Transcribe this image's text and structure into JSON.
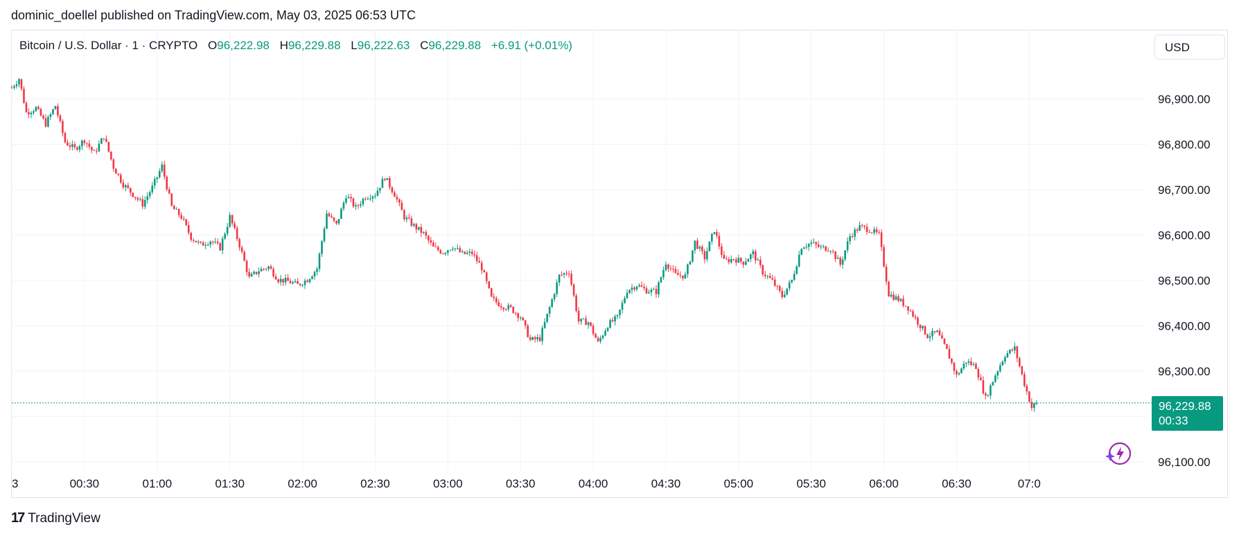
{
  "publisher": "dominic_doellel published on TradingView.com, May 03, 2025 06:53 UTC",
  "legend": {
    "symbol": "Bitcoin / U.S. Dollar · 1 · CRYPTO",
    "open_label": "O",
    "open": "96,222.98",
    "high_label": "H",
    "high": "96,229.88",
    "low_label": "L",
    "low": "96,222.63",
    "close_label": "C",
    "close": "96,229.88",
    "change": "+6.91 (+0.01%)"
  },
  "currency": "USD",
  "last_price": {
    "price": "96,229.88",
    "countdown": "00:33"
  },
  "footer": {
    "brand": "TradingView",
    "mark": "17"
  },
  "colors": {
    "up": "#089981",
    "down": "#f23645",
    "grid": "#f0f3fa",
    "text": "#131722"
  },
  "chart_data": {
    "type": "candlestick",
    "title": "",
    "ylim": [
      96080,
      96990
    ],
    "y_ticks": [
      {
        "value": 96900,
        "label": "96,900.00"
      },
      {
        "value": 96800,
        "label": "96,800.00"
      },
      {
        "value": 96700,
        "label": "96,700.00"
      },
      {
        "value": 96600,
        "label": "96,600.00"
      },
      {
        "value": 96500,
        "label": "96,500.00"
      },
      {
        "value": 96400,
        "label": "96,400.00"
      },
      {
        "value": 96300,
        "label": "96,300.00"
      },
      {
        "value": 96100,
        "label": "96,100.00"
      }
    ],
    "x_ticks": [
      {
        "minute": 0,
        "label": "3"
      },
      {
        "minute": 30,
        "label": "00:30"
      },
      {
        "minute": 60,
        "label": "01:00"
      },
      {
        "minute": 90,
        "label": "01:30"
      },
      {
        "minute": 120,
        "label": "02:00"
      },
      {
        "minute": 150,
        "label": "02:30"
      },
      {
        "minute": 180,
        "label": "03:00"
      },
      {
        "minute": 210,
        "label": "03:30"
      },
      {
        "minute": 240,
        "label": "04:00"
      },
      {
        "minute": 270,
        "label": "04:30"
      },
      {
        "minute": 300,
        "label": "05:00"
      },
      {
        "minute": 330,
        "label": "05:30"
      },
      {
        "minute": 360,
        "label": "06:00"
      },
      {
        "minute": 390,
        "label": "06:30"
      },
      {
        "minute": 420,
        "label": "07:0"
      }
    ],
    "x_range_minutes": [
      0,
      414
    ],
    "last_close": 96229.88,
    "close_path": [
      [
        0,
        96925
      ],
      [
        3,
        96945
      ],
      [
        6,
        96870
      ],
      [
        10,
        96880
      ],
      [
        14,
        96845
      ],
      [
        18,
        96885
      ],
      [
        22,
        96805
      ],
      [
        26,
        96790
      ],
      [
        30,
        96810
      ],
      [
        34,
        96780
      ],
      [
        38,
        96818
      ],
      [
        42,
        96750
      ],
      [
        46,
        96712
      ],
      [
        50,
        96690
      ],
      [
        54,
        96668
      ],
      [
        58,
        96705
      ],
      [
        62,
        96752
      ],
      [
        66,
        96662
      ],
      [
        70,
        96640
      ],
      [
        74,
        96595
      ],
      [
        78,
        96578
      ],
      [
        82,
        96588
      ],
      [
        86,
        96572
      ],
      [
        90,
        96640
      ],
      [
        94,
        96578
      ],
      [
        98,
        96505
      ],
      [
        102,
        96522
      ],
      [
        106,
        96530
      ],
      [
        110,
        96502
      ],
      [
        114,
        96498
      ],
      [
        118,
        96490
      ],
      [
        122,
        96502
      ],
      [
        126,
        96526
      ],
      [
        130,
        96648
      ],
      [
        134,
        96622
      ],
      [
        138,
        96688
      ],
      [
        142,
        96660
      ],
      [
        146,
        96685
      ],
      [
        150,
        96690
      ],
      [
        154,
        96728
      ],
      [
        158,
        96690
      ],
      [
        162,
        96640
      ],
      [
        166,
        96620
      ],
      [
        170,
        96603
      ],
      [
        174,
        96572
      ],
      [
        178,
        96562
      ],
      [
        182,
        96575
      ],
      [
        186,
        96558
      ],
      [
        190,
        96560
      ],
      [
        194,
        96528
      ],
      [
        198,
        96460
      ],
      [
        202,
        96445
      ],
      [
        206,
        96438
      ],
      [
        210,
        96420
      ],
      [
        214,
        96368
      ],
      [
        218,
        96372
      ],
      [
        222,
        96440
      ],
      [
        226,
        96510
      ],
      [
        230,
        96520
      ],
      [
        234,
        96410
      ],
      [
        238,
        96408
      ],
      [
        242,
        96362
      ],
      [
        246,
        96402
      ],
      [
        250,
        96418
      ],
      [
        254,
        96478
      ],
      [
        258,
        96490
      ],
      [
        262,
        96478
      ],
      [
        266,
        96475
      ],
      [
        270,
        96540
      ],
      [
        274,
        96512
      ],
      [
        278,
        96510
      ],
      [
        282,
        96585
      ],
      [
        286,
        96550
      ],
      [
        290,
        96612
      ],
      [
        294,
        96542
      ],
      [
        298,
        96548
      ],
      [
        302,
        96540
      ],
      [
        306,
        96560
      ],
      [
        310,
        96518
      ],
      [
        314,
        96498
      ],
      [
        318,
        96465
      ],
      [
        322,
        96500
      ],
      [
        326,
        96575
      ],
      [
        330,
        96582
      ],
      [
        334,
        96572
      ],
      [
        338,
        96570
      ],
      [
        342,
        96535
      ],
      [
        346,
        96598
      ],
      [
        350,
        96618
      ],
      [
        354,
        96612
      ],
      [
        358,
        96600
      ],
      [
        362,
        96470
      ],
      [
        366,
        96458
      ],
      [
        370,
        96440
      ],
      [
        374,
        96408
      ],
      [
        378,
        96378
      ],
      [
        382,
        96385
      ],
      [
        386,
        96345
      ],
      [
        390,
        96290
      ],
      [
        394,
        96322
      ],
      [
        398,
        96310
      ],
      [
        402,
        96240
      ],
      [
        406,
        96292
      ],
      [
        410,
        96336
      ],
      [
        414,
        96350
      ],
      [
        418,
        96272
      ],
      [
        421,
        96220
      ],
      [
        423,
        96229.88
      ]
    ]
  }
}
